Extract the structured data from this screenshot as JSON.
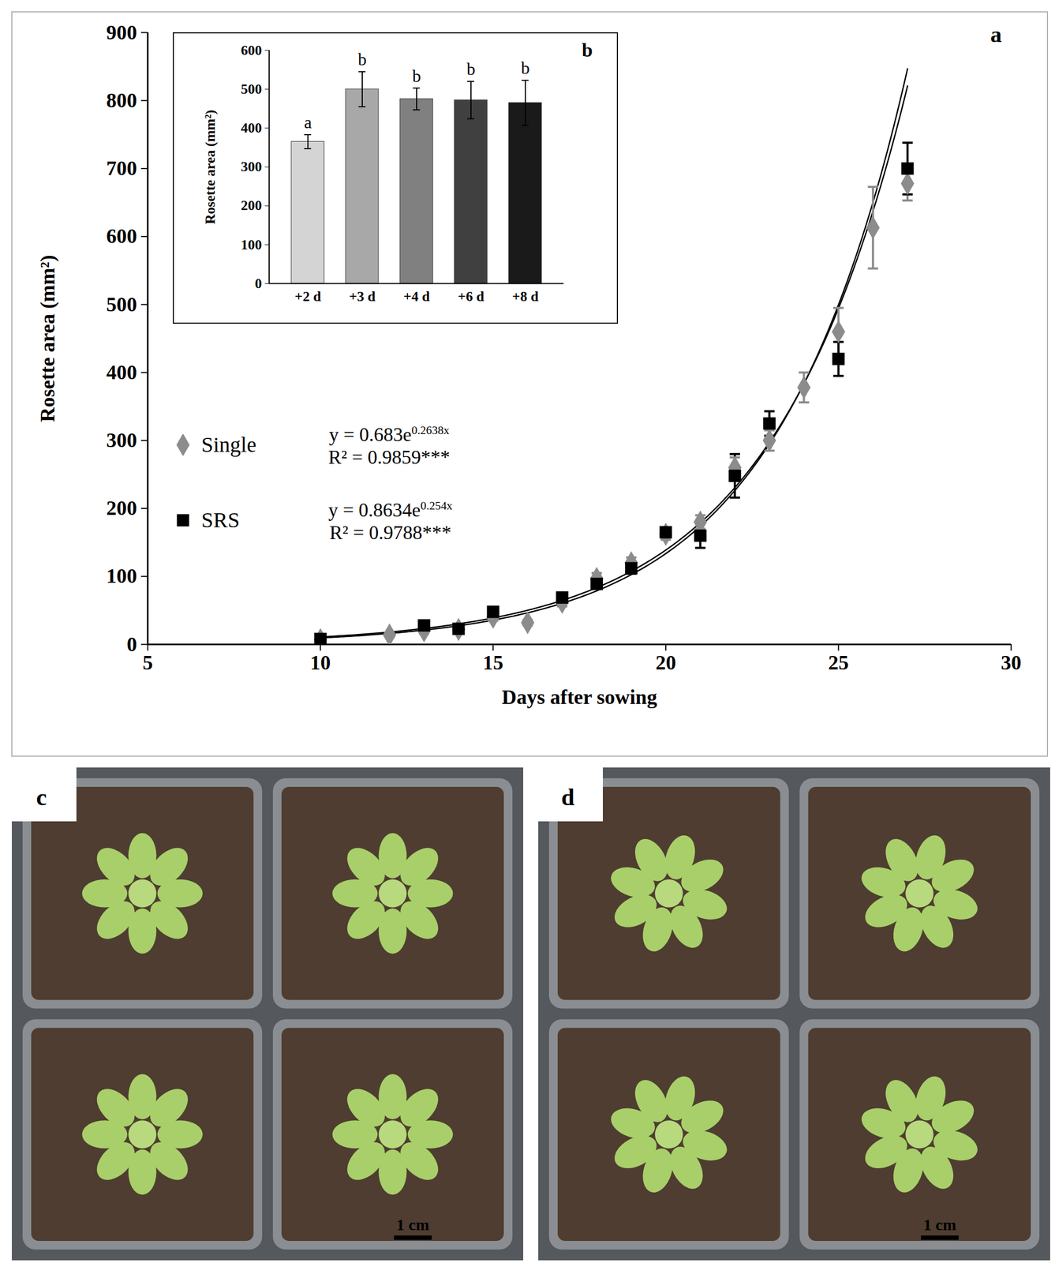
{
  "chart_data": [
    {
      "type": "scatter",
      "panel_label": "a",
      "x_label": "Days after sowing",
      "y_label": "Rosette area (mm²)",
      "xlim": [
        5,
        30
      ],
      "xticks": [
        5,
        10,
        15,
        20,
        25,
        30
      ],
      "ylim": [
        0,
        900
      ],
      "yticks": [
        0,
        100,
        200,
        300,
        400,
        500,
        600,
        700,
        800,
        900
      ],
      "legend": "left",
      "series": [
        {
          "name": "Single",
          "color": "#8c8c8c",
          "marker": "diamond",
          "x": [
            10,
            12,
            13,
            14,
            15,
            16,
            17,
            18,
            19,
            20,
            21,
            22,
            23,
            24,
            25,
            26,
            27
          ],
          "values": [
            7,
            14,
            20,
            22,
            40,
            32,
            62,
            97,
            120,
            162,
            180,
            260,
            300,
            378,
            460,
            613,
            678
          ],
          "errors": [
            3,
            3,
            4,
            4,
            5,
            4,
            6,
            8,
            8,
            8,
            10,
            15,
            15,
            22,
            35,
            60,
            25
          ],
          "trendline": {
            "a": 0.683,
            "b": 0.2638,
            "equation": "y = 0.683e",
            "exponent": "0.2638x",
            "r2_label": "R² = 0.9859***"
          }
        },
        {
          "name": "SRS",
          "color": "#000000",
          "marker": "square",
          "x": [
            10,
            13,
            14,
            15,
            17,
            18,
            19,
            20,
            21,
            22,
            23,
            25,
            27
          ],
          "values": [
            8,
            28,
            23,
            48,
            69,
            89,
            112,
            165,
            160,
            248,
            325,
            420,
            700
          ],
          "errors": [
            3,
            4,
            4,
            5,
            6,
            7,
            8,
            6,
            18,
            32,
            18,
            25,
            38
          ],
          "trendline": {
            "a": 0.8634,
            "b": 0.254,
            "equation": "y = 0.8634e",
            "exponent": "0.254x",
            "r2_label": "R² = 0.9788***"
          }
        }
      ]
    },
    {
      "type": "bar",
      "panel_label": "b",
      "y_label": "Rosette area (mm²)",
      "categories": [
        "+2 d",
        "+3 d",
        "+4 d",
        "+6 d",
        "+8 d"
      ],
      "values": [
        365,
        500,
        475,
        472,
        465
      ],
      "errors": [
        18,
        45,
        28,
        48,
        58
      ],
      "letters": [
        "a",
        "b",
        "b",
        "b",
        "b"
      ],
      "colors": [
        "#d4d4d4",
        "#a8a8a8",
        "#808080",
        "#404040",
        "#1a1a1a"
      ],
      "ylim": [
        0,
        600
      ],
      "yticks": [
        0,
        100,
        200,
        300,
        400,
        500,
        600
      ]
    }
  ],
  "photos": [
    {
      "panel_label": "c",
      "scale_bar": "1 cm"
    },
    {
      "panel_label": "d",
      "scale_bar": "1 cm"
    }
  ]
}
